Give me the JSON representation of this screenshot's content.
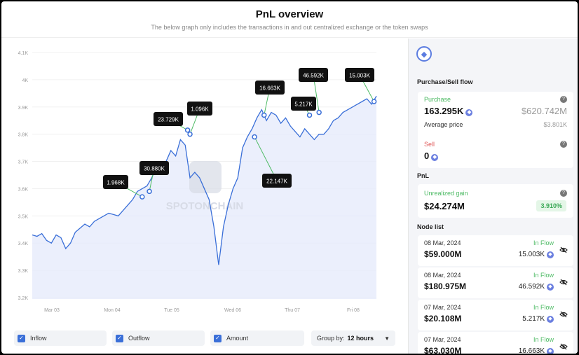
{
  "header": {
    "title": "PnL overview",
    "subtitle": "The below graph only includes the transactions in and out centralized exchange or the token swaps"
  },
  "chart_data": {
    "type": "line",
    "x_ticks": [
      "Mar 03",
      "Mon 04",
      "Tue 05",
      "Wed 06",
      "Thu 07",
      "Fri 08"
    ],
    "y_ticks": [
      "4.1K",
      "4K",
      "3.9K",
      "3.8K",
      "3.7K",
      "3.6K",
      "3.5K",
      "3.4K",
      "3.3K",
      "3.2K"
    ],
    "ylim": [
      3200,
      4100
    ],
    "series": [
      {
        "values": [
          3430,
          3425,
          3435,
          3410,
          3400,
          3430,
          3420,
          3380,
          3400,
          3440,
          3455,
          3470,
          3460,
          3480,
          3490,
          3500,
          3510,
          3505,
          3500,
          3520,
          3540,
          3560,
          3590,
          3600,
          3610,
          3640,
          3680,
          3660,
          3700,
          3740,
          3720,
          3780,
          3760,
          3640,
          3660,
          3640,
          3600,
          3560,
          3460,
          3320,
          3460,
          3540,
          3600,
          3640,
          3750,
          3790,
          3820,
          3860,
          3890,
          3850,
          3880,
          3870,
          3840,
          3860,
          3830,
          3810,
          3790,
          3820,
          3800,
          3780,
          3800,
          3800,
          3820,
          3850,
          3860,
          3880,
          3890,
          3900,
          3910,
          3920,
          3930,
          3910,
          3940
        ]
      }
    ],
    "annotations": [
      {
        "label": "1.968K",
        "x": 23,
        "y": 3570
      },
      {
        "label": "30.880K",
        "x": 24.5,
        "y": 3590
      },
      {
        "label": "23.729K",
        "x": 32.5,
        "y": 3815
      },
      {
        "label": "1.096K",
        "x": 33,
        "y": 3800
      },
      {
        "label": "16.663K",
        "x": 48.5,
        "y": 3870
      },
      {
        "label": "22.147K",
        "x": 46.5,
        "y": 3790
      },
      {
        "label": "5.217K",
        "x": 58,
        "y": 3870
      },
      {
        "label": "46.592K",
        "x": 60,
        "y": 3880
      },
      {
        "label": "15.003K",
        "x": 71.5,
        "y": 3920
      }
    ],
    "watermark": "SPOTONCHAIN"
  },
  "controls": {
    "inflow": "Inflow",
    "outflow": "Outflow",
    "amount": "Amount",
    "group_label": "Group by:",
    "group_value": "12 hours"
  },
  "sidebar": {
    "token_icon": "ethereum-icon",
    "purchase_sell_title": "Purchase/Sell flow",
    "purchase_label": "Purchase",
    "purchase_amount": "163.295K",
    "purchase_usd": "$620.742M",
    "avg_price_label": "Average price",
    "avg_price_value": "$3.801K",
    "sell_label": "Sell",
    "sell_amount": "0",
    "pnl_title": "PnL",
    "unrealized_label": "Unrealized gain",
    "unrealized_value": "$24.274M",
    "unrealized_pct": "3.910%",
    "node_list_title": "Node list",
    "nodes": [
      {
        "date": "08 Mar, 2024",
        "flow": "In Flow",
        "usd": "$59.000M",
        "eth": "15.003K"
      },
      {
        "date": "08 Mar, 2024",
        "flow": "In Flow",
        "usd": "$180.975M",
        "eth": "46.592K"
      },
      {
        "date": "07 Mar, 2024",
        "flow": "In Flow",
        "usd": "$20.108M",
        "eth": "5.217K"
      },
      {
        "date": "07 Mar, 2024",
        "flow": "In Flow",
        "usd": "$63.030M",
        "eth": "16.663K"
      }
    ]
  },
  "colors": {
    "line": "#3a6fd8",
    "area": "#e6ebfb",
    "annotation_bg": "#111111",
    "annotation_line": "#4cba63",
    "accent_green": "#4cba63",
    "sell_red": "#e05a5a"
  }
}
